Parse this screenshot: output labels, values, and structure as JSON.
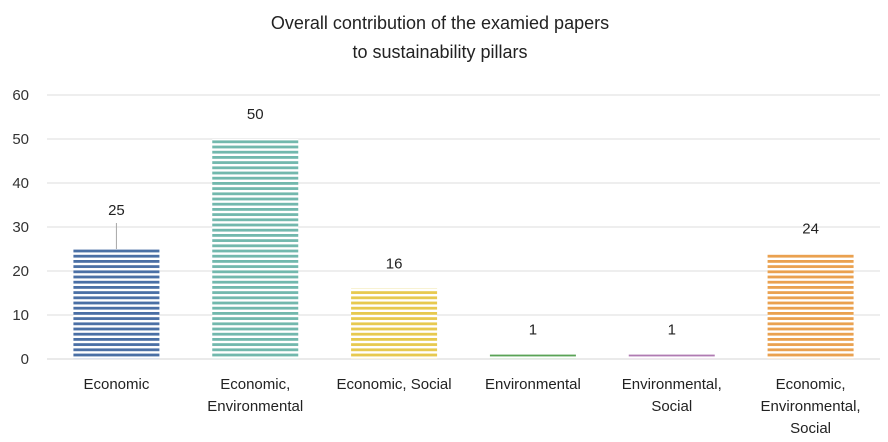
{
  "chart_data": {
    "type": "bar",
    "title": "Overall contribution of the examied papers to sustainability pillars",
    "title_lines": [
      "Overall contribution of the examied papers",
      "to sustainability pillars"
    ],
    "categories": [
      "Economic",
      "Economic, Environmental",
      "Economic, Social",
      "Environmental",
      "Environmental, Social",
      "Economic, Environmental, Social"
    ],
    "category_lines": [
      [
        "Economic"
      ],
      [
        "Economic,",
        "Environmental"
      ],
      [
        "Economic, Social"
      ],
      [
        "Environmental"
      ],
      [
        "Environmental,",
        "Social"
      ],
      [
        "Economic,",
        "Environmental,",
        "Social"
      ]
    ],
    "values": [
      25,
      50,
      16,
      1,
      1,
      24
    ],
    "data_labels": [
      "25",
      "50",
      "16",
      "1",
      "1",
      "24"
    ],
    "colors": [
      "#4A6FA5",
      "#72B8AD",
      "#E7C94F",
      "#5AA356",
      "#B07BB2",
      "#EAA14F"
    ],
    "ylim": [
      0,
      60
    ],
    "yticks": [
      0,
      10,
      20,
      30,
      40,
      50,
      60
    ],
    "ytick_labels": [
      "0",
      "10",
      "20",
      "30",
      "40",
      "50",
      "60"
    ],
    "xlabel": "",
    "ylabel": "",
    "grid": true,
    "legend": "none"
  }
}
